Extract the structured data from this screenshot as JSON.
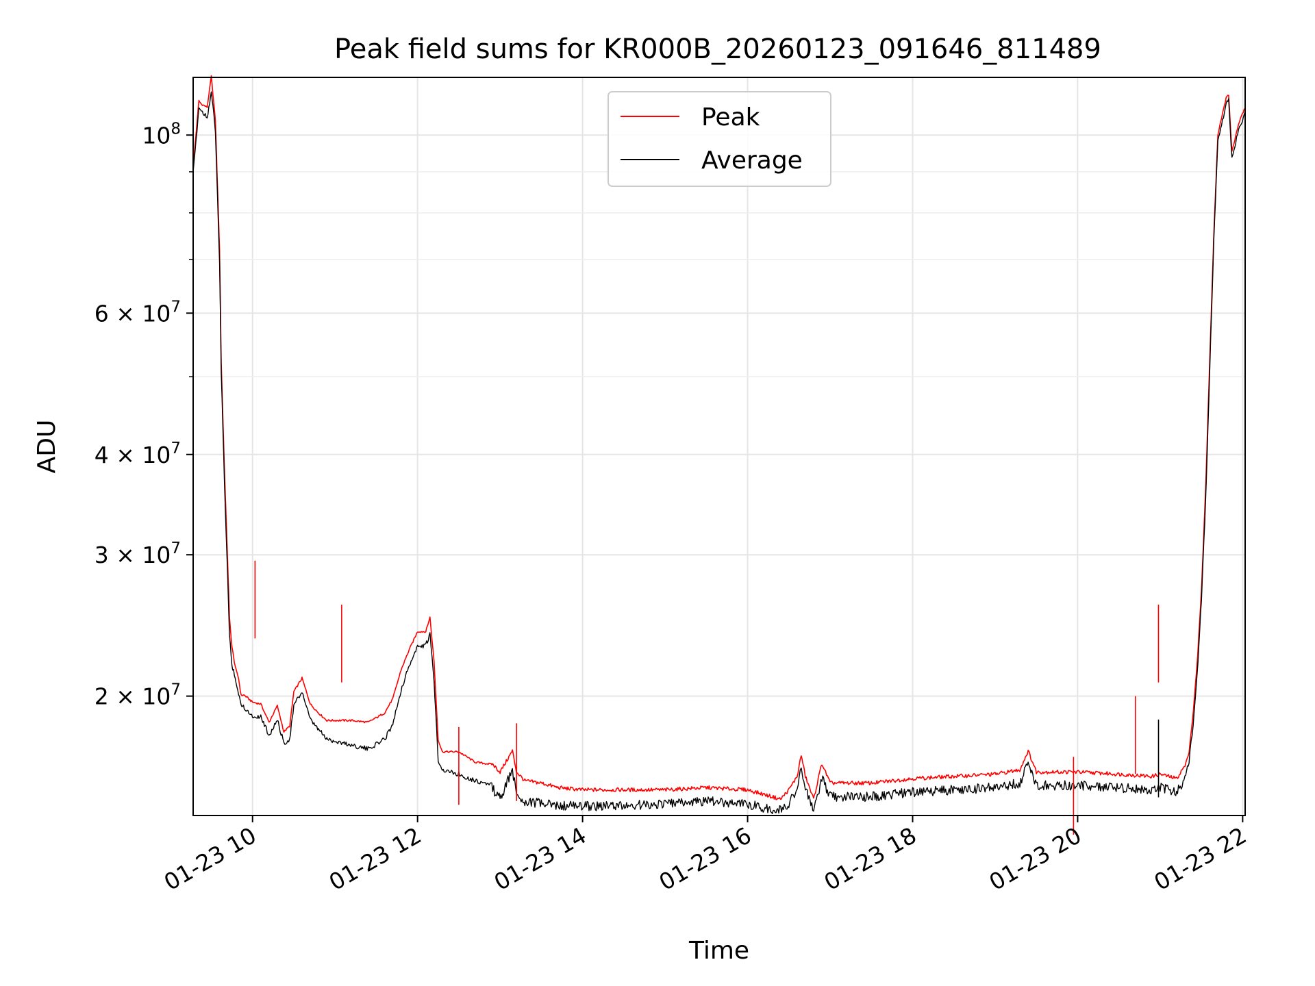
{
  "chart_data": {
    "type": "line",
    "title": "Peak field sums for KR000B_20260123_091646_811489",
    "xlabel": "Time",
    "ylabel": "ADU",
    "yscale": "log",
    "ylim": [
      14200000,
      118000000
    ],
    "xlim_hours": [
      9.28,
      22.03
    ],
    "grid": true,
    "legend_position": "upper-center",
    "x_ticks": [
      {
        "hour": 10,
        "label": "01-23 10"
      },
      {
        "hour": 12,
        "label": "01-23 12"
      },
      {
        "hour": 14,
        "label": "01-23 14"
      },
      {
        "hour": 16,
        "label": "01-23 16"
      },
      {
        "hour": 18,
        "label": "01-23 18"
      },
      {
        "hour": 20,
        "label": "01-23 20"
      },
      {
        "hour": 22,
        "label": "01-23 22"
      }
    ],
    "y_ticks": [
      {
        "value": 100000000,
        "base": "10",
        "exp": "8",
        "mantissa": ""
      },
      {
        "value": 60000000,
        "base": "10",
        "exp": "7",
        "mantissa": "6"
      },
      {
        "value": 40000000,
        "base": "10",
        "exp": "7",
        "mantissa": "4"
      },
      {
        "value": 30000000,
        "base": "10",
        "exp": "7",
        "mantissa": "3"
      },
      {
        "value": 20000000,
        "base": "10",
        "exp": "7",
        "mantissa": "2"
      }
    ],
    "y_minor_ticks": [
      90000000,
      80000000,
      70000000,
      50000000
    ],
    "series": [
      {
        "name": "Peak",
        "color": "#ff0000",
        "x_hours": [
          9.28,
          9.35,
          9.38,
          9.45,
          9.5,
          9.55,
          9.6,
          9.62,
          9.66,
          9.7,
          9.72,
          9.75,
          9.78,
          9.8,
          9.83,
          9.86,
          9.9,
          10.0,
          10.1,
          10.2,
          10.3,
          10.38,
          10.45,
          10.5,
          10.6,
          10.7,
          10.8,
          10.9,
          11.0,
          11.2,
          11.4,
          11.6,
          11.7,
          11.8,
          11.9,
          12.0,
          12.1,
          12.15,
          12.2,
          12.25,
          12.3,
          12.5,
          12.7,
          12.9,
          13.0,
          13.15,
          13.2,
          13.3,
          13.5,
          13.7,
          14.0,
          14.5,
          15.0,
          15.5,
          16.0,
          16.2,
          16.4,
          16.5,
          16.6,
          16.65,
          16.7,
          16.8,
          16.9,
          17.0,
          17.5,
          18.0,
          18.5,
          19.0,
          19.3,
          19.4,
          19.5,
          19.8,
          20.0,
          20.5,
          20.9,
          21.0,
          21.2,
          21.3,
          21.35,
          21.4,
          21.45,
          21.5,
          21.55,
          21.6,
          21.65,
          21.7,
          21.8,
          21.83,
          21.87,
          21.95,
          22.03
        ],
        "values": [
          91000000,
          110000000,
          109000000,
          108000000,
          118000000,
          104000000,
          72000000,
          52000000,
          38000000,
          29000000,
          25000000,
          23000000,
          22000000,
          21500000,
          21000000,
          20000000,
          20000000,
          19600000,
          19500000,
          18500000,
          19400000,
          18000000,
          18300000,
          20200000,
          21000000,
          19500000,
          19000000,
          18600000,
          18600000,
          18600000,
          18500000,
          19000000,
          19800000,
          21500000,
          22800000,
          24000000,
          24000000,
          25000000,
          22000000,
          17600000,
          17000000,
          17000000,
          16500000,
          16400000,
          16000000,
          17000000,
          16000000,
          15600000,
          15500000,
          15300000,
          15200000,
          15200000,
          15200000,
          15300000,
          15200000,
          15000000,
          14800000,
          15200000,
          15800000,
          16800000,
          15800000,
          14800000,
          16400000,
          15500000,
          15500000,
          15700000,
          15800000,
          15900000,
          16100000,
          17000000,
          16000000,
          16000000,
          16000000,
          15900000,
          15800000,
          15900000,
          15700000,
          16300000,
          17000000,
          19000000,
          22000000,
          27000000,
          36000000,
          52000000,
          75000000,
          100000000,
          111000000,
          112000000,
          95000000,
          103000000,
          108000000
        ]
      },
      {
        "name": "Average",
        "color": "#000000",
        "x_hours": [
          9.28,
          9.35,
          9.38,
          9.45,
          9.5,
          9.55,
          9.6,
          9.62,
          9.66,
          9.7,
          9.72,
          9.75,
          9.78,
          9.8,
          9.83,
          9.86,
          9.9,
          10.0,
          10.1,
          10.2,
          10.3,
          10.38,
          10.45,
          10.5,
          10.6,
          10.7,
          10.8,
          10.9,
          11.0,
          11.2,
          11.4,
          11.6,
          11.7,
          11.8,
          11.9,
          12.0,
          12.1,
          12.15,
          12.2,
          12.25,
          12.3,
          12.5,
          12.7,
          12.9,
          13.0,
          13.15,
          13.2,
          13.3,
          13.5,
          13.7,
          14.0,
          14.5,
          15.0,
          15.5,
          16.0,
          16.2,
          16.4,
          16.5,
          16.6,
          16.65,
          16.7,
          16.8,
          16.9,
          17.0,
          17.5,
          18.0,
          18.5,
          19.0,
          19.3,
          19.4,
          19.5,
          19.8,
          20.0,
          20.5,
          20.9,
          21.0,
          21.2,
          21.3,
          21.35,
          21.4,
          21.45,
          21.5,
          21.55,
          21.6,
          21.65,
          21.7,
          21.8,
          21.83,
          21.87,
          21.95,
          22.03
        ],
        "values": [
          90000000,
          109000000,
          108000000,
          106000000,
          114000000,
          102000000,
          70000000,
          51000000,
          37000000,
          28000000,
          24000000,
          22000000,
          21500000,
          21000000,
          20200000,
          19700000,
          19500000,
          19000000,
          19000000,
          18000000,
          18800000,
          17600000,
          17800000,
          19600000,
          20400000,
          18800000,
          18300000,
          17800000,
          17700000,
          17500000,
          17300000,
          17800000,
          18600000,
          20500000,
          22000000,
          23200000,
          23300000,
          24000000,
          21000000,
          16800000,
          16300000,
          16100000,
          15800000,
          15600000,
          15100000,
          16400000,
          15300000,
          15000000,
          14900000,
          14800000,
          14800000,
          14800000,
          14900000,
          15000000,
          14900000,
          14700000,
          14600000,
          14900000,
          15600000,
          16500000,
          15500000,
          14600000,
          16000000,
          15200000,
          15200000,
          15400000,
          15500000,
          15600000,
          15800000,
          16700000,
          15700000,
          15700000,
          15700000,
          15600000,
          15500000,
          15600000,
          15400000,
          16000000,
          16700000,
          18600000,
          21500000,
          26500000,
          35000000,
          51000000,
          74000000,
          99000000,
          110000000,
          111000000,
          94000000,
          102000000,
          107000000
        ]
      }
    ],
    "spikes": [
      {
        "series": "Peak",
        "hour": 10.03,
        "value": 29500000
      },
      {
        "series": "Peak",
        "hour": 11.08,
        "value": 26000000
      },
      {
        "series": "Peak",
        "hour": 12.5,
        "value": 18300000
      },
      {
        "series": "Peak",
        "hour": 13.2,
        "value": 18500000
      },
      {
        "series": "Peak",
        "hour": 19.95,
        "value": 16800000
      },
      {
        "series": "Peak",
        "hour": 20.7,
        "value": 20000000
      },
      {
        "series": "Peak",
        "hour": 20.98,
        "value": 26000000
      },
      {
        "series": "Average",
        "hour": 20.98,
        "value": 18700000
      }
    ]
  }
}
